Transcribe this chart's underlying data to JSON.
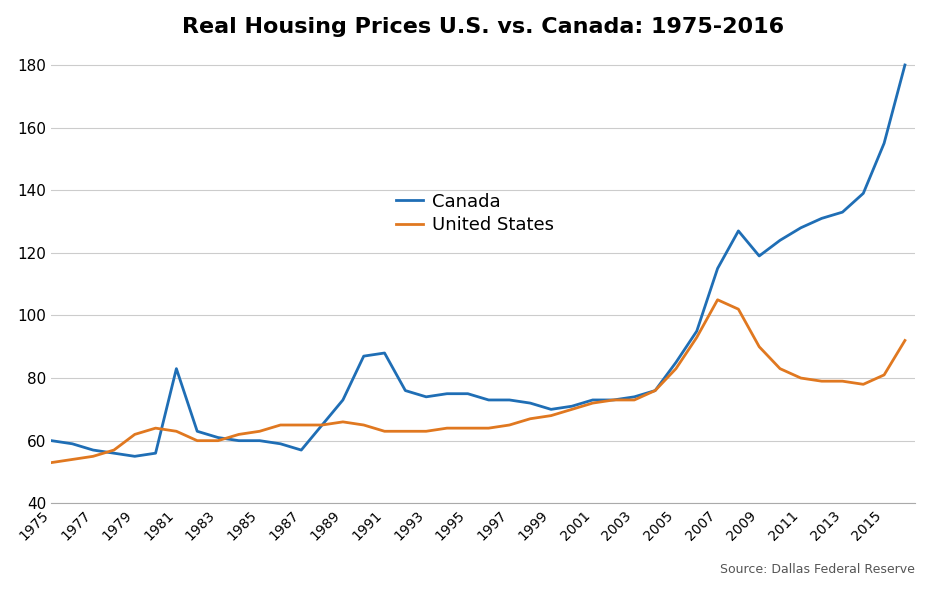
{
  "title": "Real Housing Prices U.S. vs. Canada: 1975-2016",
  "source_text": "Source: Dallas Federal Reserve",
  "canada_color": "#1f6eb5",
  "us_color": "#e07820",
  "line_width": 2.0,
  "ylim": [
    40,
    185
  ],
  "yticks": [
    40,
    60,
    80,
    100,
    120,
    140,
    160,
    180
  ],
  "legend_labels": [
    "Canada",
    "United States"
  ],
  "canada_years": [
    1975,
    1976,
    1977,
    1978,
    1979,
    1980,
    1981,
    1982,
    1983,
    1984,
    1985,
    1986,
    1987,
    1988,
    1989,
    1990,
    1991,
    1992,
    1993,
    1994,
    1995,
    1996,
    1997,
    1998,
    1999,
    2000,
    2001,
    2002,
    2003,
    2004,
    2005,
    2006,
    2007,
    2008,
    2009,
    2010,
    2011,
    2012,
    2013,
    2014,
    2015,
    2016
  ],
  "canada_values": [
    60,
    59,
    57,
    56,
    55,
    56,
    83,
    63,
    61,
    60,
    60,
    59,
    57,
    65,
    73,
    87,
    88,
    76,
    74,
    75,
    75,
    73,
    73,
    72,
    70,
    71,
    73,
    73,
    74,
    76,
    85,
    95,
    115,
    127,
    119,
    124,
    128,
    131,
    133,
    139,
    155,
    180
  ],
  "us_years": [
    1975,
    1976,
    1977,
    1978,
    1979,
    1980,
    1981,
    1982,
    1983,
    1984,
    1985,
    1986,
    1987,
    1988,
    1989,
    1990,
    1991,
    1992,
    1993,
    1994,
    1995,
    1996,
    1997,
    1998,
    1999,
    2000,
    2001,
    2002,
    2003,
    2004,
    2005,
    2006,
    2007,
    2008,
    2009,
    2010,
    2011,
    2012,
    2013,
    2014,
    2015,
    2016
  ],
  "us_values": [
    53,
    54,
    55,
    57,
    62,
    64,
    63,
    60,
    60,
    62,
    63,
    65,
    65,
    65,
    66,
    65,
    63,
    63,
    63,
    64,
    64,
    64,
    65,
    67,
    68,
    70,
    72,
    73,
    73,
    76,
    83,
    93,
    105,
    102,
    90,
    83,
    80,
    79,
    79,
    78,
    81,
    92
  ]
}
